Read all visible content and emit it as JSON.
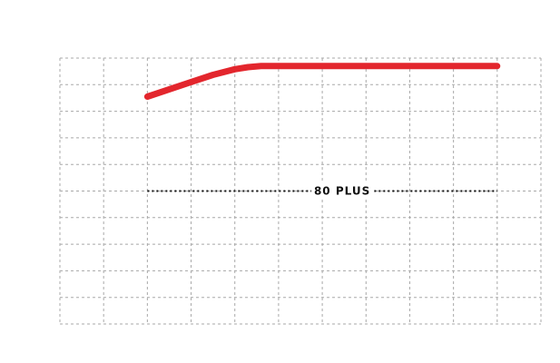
{
  "chart_data": {
    "type": "line",
    "title": "",
    "xlabel": "",
    "ylabel": "",
    "grid": true,
    "x_divisions": 11,
    "y_divisions": 10,
    "xlim": [
      0,
      11
    ],
    "ylim": [
      0,
      10
    ],
    "series": [
      {
        "color": "#e3262d",
        "points": [
          [
            2,
            8.55
          ],
          [
            3,
            9.1
          ],
          [
            3.5,
            9.37
          ],
          [
            4,
            9.58
          ],
          [
            4.3,
            9.66
          ],
          [
            4.6,
            9.7
          ],
          [
            5,
            9.7
          ],
          [
            6,
            9.7
          ],
          [
            7,
            9.7
          ],
          [
            8,
            9.7
          ],
          [
            9,
            9.7
          ],
          [
            10,
            9.7
          ]
        ]
      }
    ],
    "reference_lines": [
      {
        "label": "80 PLUS",
        "y": 5,
        "x_start": 2,
        "x_end": 10,
        "color": "#111111"
      }
    ]
  }
}
